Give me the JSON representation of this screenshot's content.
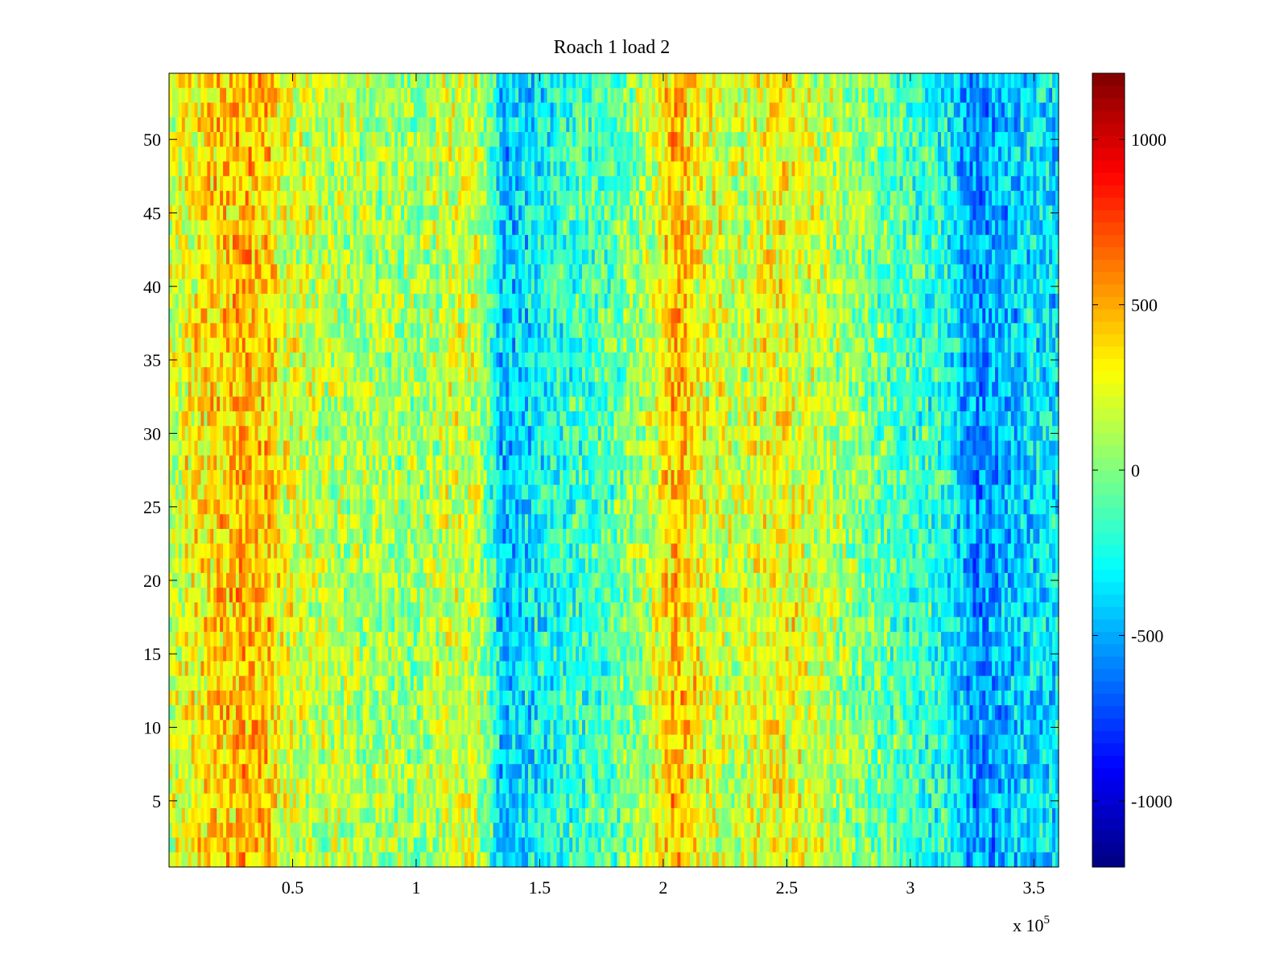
{
  "chart_data": {
    "type": "heatmap",
    "title": "Roach 1 load 2",
    "xlabel": "",
    "ylabel": "",
    "x_multiplier_label": "x 10",
    "x_multiplier_exponent": "5",
    "xlim": [
      0,
      3.6
    ],
    "ylim": [
      0.5,
      54.5
    ],
    "x_ticks": [
      0.5,
      1,
      1.5,
      2,
      2.5,
      3,
      3.5
    ],
    "x_tick_labels": [
      "0.5",
      "1",
      "1.5",
      "2",
      "2.5",
      "3",
      "3.5"
    ],
    "y_ticks": [
      5,
      10,
      15,
      20,
      25,
      30,
      35,
      40,
      45,
      50
    ],
    "y_tick_labels": [
      "5",
      "10",
      "15",
      "20",
      "25",
      "30",
      "35",
      "40",
      "45",
      "50"
    ],
    "rows": 54,
    "colorbar": {
      "colormap": "jet",
      "range": [
        -1200,
        1200
      ],
      "ticks": [
        1000,
        500,
        0,
        -500,
        -1000
      ],
      "tick_labels": [
        "1000",
        "500",
        "0",
        "-500",
        "-1000"
      ]
    },
    "column_profile": {
      "x": [
        0,
        0.1,
        0.2,
        0.3,
        0.4,
        0.45,
        0.6,
        0.8,
        1.0,
        1.1,
        1.2,
        1.25,
        1.3,
        1.35,
        1.45,
        1.6,
        1.8,
        1.95,
        2.05,
        2.15,
        2.3,
        2.45,
        2.6,
        2.8,
        3.0,
        3.15,
        3.25,
        3.35,
        3.5,
        3.6
      ],
      "mean_value": [
        150,
        300,
        400,
        450,
        430,
        250,
        150,
        100,
        50,
        150,
        200,
        150,
        -100,
        -450,
        -350,
        -200,
        -100,
        150,
        500,
        250,
        150,
        300,
        200,
        0,
        -150,
        -250,
        -550,
        -500,
        -350,
        -350
      ]
    }
  }
}
